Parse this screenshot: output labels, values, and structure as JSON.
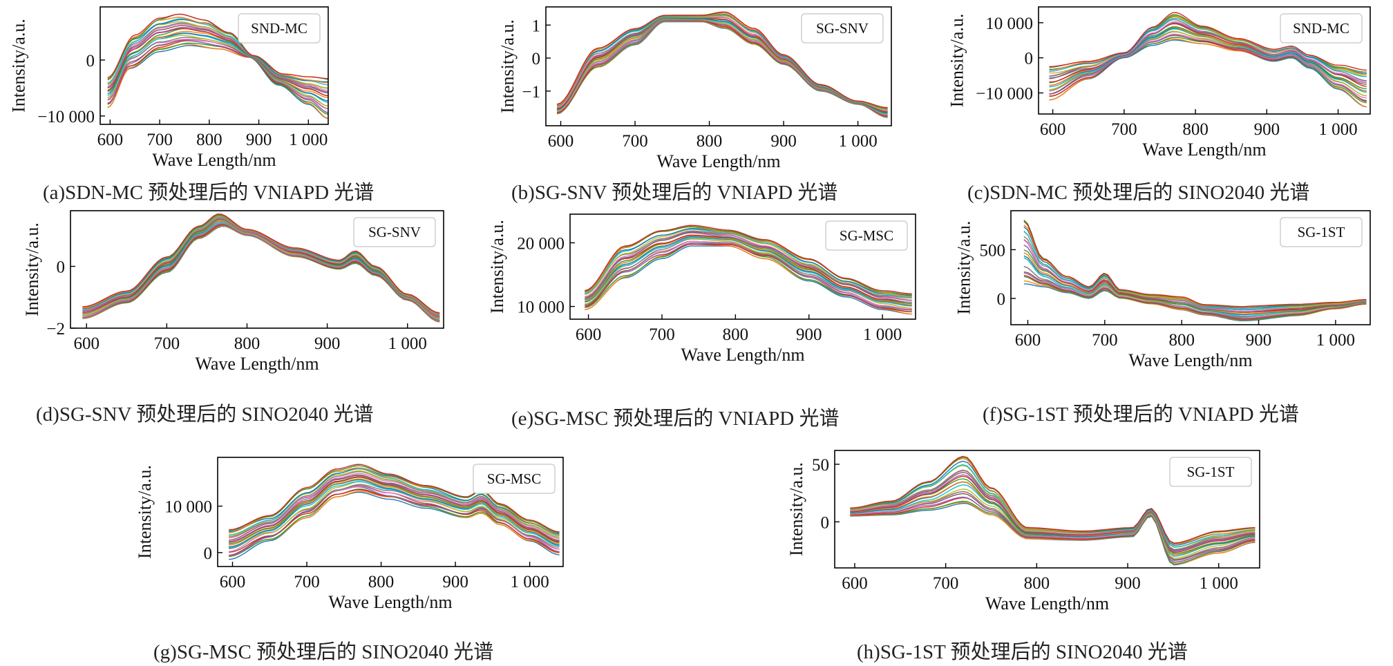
{
  "chart_data": [
    {
      "id": "a",
      "type": "line",
      "caption": "(a)SDN-MC 预处理后的 VNIAPD 光谱",
      "legend": "SND-MC",
      "xlabel": "Wave Length/nm",
      "ylabel": "Intensity/a.u.",
      "xlim": [
        580,
        1040
      ],
      "ylim": [
        -11500,
        9500
      ],
      "x_ticks": [
        {
          "v": 600,
          "label": "600"
        },
        {
          "v": 700,
          "label": "700"
        },
        {
          "v": 800,
          "label": "800"
        },
        {
          "v": 900,
          "label": "900"
        },
        {
          "v": 1000,
          "label": "1 000"
        }
      ],
      "y_ticks": [
        {
          "v": 0,
          "label": "0"
        },
        {
          "v": -10000,
          "label": "−10 000"
        }
      ],
      "legend_position": "top-right",
      "x_range": [
        595,
        1040
      ],
      "upper": [
        [
          595,
          -3000
        ],
        [
          650,
          4500
        ],
        [
          700,
          7500
        ],
        [
          740,
          8200
        ],
        [
          790,
          7200
        ],
        [
          840,
          5000
        ],
        [
          890,
          800
        ],
        [
          950,
          -2500
        ],
        [
          1000,
          -3000
        ],
        [
          1040,
          -3200
        ]
      ],
      "lower": [
        [
          595,
          -8500
        ],
        [
          640,
          -1500
        ],
        [
          700,
          1500
        ],
        [
          760,
          2500
        ],
        [
          820,
          2000
        ],
        [
          880,
          500
        ],
        [
          940,
          -4500
        ],
        [
          1000,
          -8000
        ],
        [
          1040,
          -10500
        ]
      ]
    },
    {
      "id": "b",
      "type": "line",
      "caption": "(b)SG-SNV 预处理后的 VNIAPD 光谱",
      "legend": "SG-SNV",
      "xlabel": "Wave Length/nm",
      "ylabel": "Intensity/a.u.",
      "xlim": [
        580,
        1045
      ],
      "ylim": [
        -2.05,
        1.55
      ],
      "x_ticks": [
        {
          "v": 600,
          "label": "600"
        },
        {
          "v": 700,
          "label": "700"
        },
        {
          "v": 800,
          "label": "800"
        },
        {
          "v": 900,
          "label": "900"
        },
        {
          "v": 1000,
          "label": "1 000"
        }
      ],
      "y_ticks": [
        {
          "v": 1,
          "label": "1"
        },
        {
          "v": 0,
          "label": "0"
        },
        {
          "v": -1,
          "label": "−1"
        }
      ],
      "legend_position": "top-right",
      "x_range": [
        595,
        1040
      ],
      "upper": [
        [
          595,
          -1.4
        ],
        [
          650,
          0.3
        ],
        [
          700,
          0.9
        ],
        [
          740,
          1.3
        ],
        [
          790,
          1.3
        ],
        [
          820,
          1.4
        ],
        [
          860,
          0.9
        ],
        [
          900,
          0.1
        ],
        [
          950,
          -0.8
        ],
        [
          1000,
          -1.3
        ],
        [
          1040,
          -1.5
        ]
      ],
      "lower": [
        [
          595,
          -1.7
        ],
        [
          650,
          -0.3
        ],
        [
          700,
          0.4
        ],
        [
          740,
          1.1
        ],
        [
          790,
          1.1
        ],
        [
          820,
          0.9
        ],
        [
          860,
          0.4
        ],
        [
          900,
          -0.2
        ],
        [
          950,
          -1.0
        ],
        [
          1000,
          -1.4
        ],
        [
          1040,
          -1.8
        ]
      ]
    },
    {
      "id": "c",
      "type": "line",
      "caption": "(c)SDN-MC 预处理后的 SINO2040 光谱",
      "legend": "SND-MC",
      "xlabel": "Wave Length/nm",
      "ylabel": "Intensity/a.u.",
      "xlim": [
        580,
        1045
      ],
      "ylim": [
        -16000,
        14500
      ],
      "x_ticks": [
        {
          "v": 600,
          "label": "600"
        },
        {
          "v": 700,
          "label": "700"
        },
        {
          "v": 800,
          "label": "800"
        },
        {
          "v": 900,
          "label": "900"
        },
        {
          "v": 1000,
          "label": "1 000"
        }
      ],
      "y_ticks": [
        {
          "v": 10000,
          "label": "10 000"
        },
        {
          "v": 0,
          "label": "0"
        },
        {
          "v": -10000,
          "label": "−10 000"
        }
      ],
      "legend_position": "top-right",
      "x_range": [
        595,
        1040
      ],
      "upper": [
        [
          595,
          -2500
        ],
        [
          650,
          -1000
        ],
        [
          700,
          1500
        ],
        [
          740,
          9000
        ],
        [
          770,
          13000
        ],
        [
          810,
          9000
        ],
        [
          860,
          5500
        ],
        [
          910,
          2500
        ],
        [
          935,
          3500
        ],
        [
          960,
          1000
        ],
        [
          1000,
          -2000
        ],
        [
          1040,
          -3500
        ]
      ],
      "lower": [
        [
          595,
          -12000
        ],
        [
          650,
          -6000
        ],
        [
          700,
          0
        ],
        [
          740,
          3500
        ],
        [
          770,
          5000
        ],
        [
          810,
          4000
        ],
        [
          860,
          2000
        ],
        [
          910,
          -1000
        ],
        [
          935,
          0
        ],
        [
          960,
          -3000
        ],
        [
          1000,
          -9000
        ],
        [
          1040,
          -14000
        ]
      ]
    },
    {
      "id": "d",
      "type": "line",
      "caption": "(d)SG-SNV 预处理后的 SINO2040 光谱",
      "legend": "SG-SNV",
      "xlabel": "Wave Length/nm",
      "ylabel": "Intensity/a.u.",
      "xlim": [
        580,
        1045
      ],
      "ylim": [
        -2.0,
        1.8
      ],
      "x_ticks": [
        {
          "v": 600,
          "label": "600"
        },
        {
          "v": 700,
          "label": "700"
        },
        {
          "v": 800,
          "label": "800"
        },
        {
          "v": 900,
          "label": "900"
        },
        {
          "v": 1000,
          "label": "1 000"
        }
      ],
      "y_ticks": [
        {
          "v": 0,
          "label": "0"
        },
        {
          "v": -2,
          "label": "−2"
        }
      ],
      "legend_position": "top-right",
      "x_range": [
        595,
        1040
      ],
      "upper": [
        [
          595,
          -1.3
        ],
        [
          650,
          -0.8
        ],
        [
          700,
          0.3
        ],
        [
          740,
          1.3
        ],
        [
          765,
          1.7
        ],
        [
          800,
          1.2
        ],
        [
          860,
          0.6
        ],
        [
          915,
          0.2
        ],
        [
          935,
          0.5
        ],
        [
          960,
          0.0
        ],
        [
          1000,
          -0.9
        ],
        [
          1040,
          -1.5
        ]
      ],
      "lower": [
        [
          595,
          -1.7
        ],
        [
          650,
          -1.2
        ],
        [
          700,
          -0.2
        ],
        [
          740,
          0.9
        ],
        [
          770,
          1.3
        ],
        [
          800,
          1.0
        ],
        [
          860,
          0.3
        ],
        [
          915,
          -0.1
        ],
        [
          935,
          0.1
        ],
        [
          960,
          -0.3
        ],
        [
          1000,
          -1.1
        ],
        [
          1040,
          -1.8
        ]
      ]
    },
    {
      "id": "e",
      "type": "line",
      "caption": "(e)SG-MSC 预处理后的 VNIAPD 光谱",
      "legend": "SG-MSC",
      "xlabel": "Wave Length/nm",
      "ylabel": "Intensity/a.u.",
      "xlim": [
        575,
        1045
      ],
      "ylim": [
        8000,
        24500
      ],
      "x_ticks": [
        {
          "v": 600,
          "label": "600"
        },
        {
          "v": 700,
          "label": "700"
        },
        {
          "v": 800,
          "label": "800"
        },
        {
          "v": 900,
          "label": "900"
        },
        {
          "v": 1000,
          "label": "1 000"
        }
      ],
      "y_ticks": [
        {
          "v": 20000,
          "label": "20 000"
        },
        {
          "v": 10000,
          "label": "10 000"
        }
      ],
      "legend_position": "top-right",
      "x_range": [
        595,
        1040
      ],
      "upper": [
        [
          595,
          12500
        ],
        [
          650,
          19500
        ],
        [
          700,
          22000
        ],
        [
          740,
          22800
        ],
        [
          790,
          22000
        ],
        [
          840,
          20500
        ],
        [
          900,
          17500
        ],
        [
          950,
          14500
        ],
        [
          1000,
          12500
        ],
        [
          1040,
          12000
        ]
      ],
      "lower": [
        [
          595,
          9500
        ],
        [
          650,
          14500
        ],
        [
          700,
          17500
        ],
        [
          740,
          19500
        ],
        [
          790,
          19500
        ],
        [
          840,
          17500
        ],
        [
          900,
          14000
        ],
        [
          950,
          11500
        ],
        [
          1000,
          9500
        ],
        [
          1040,
          8800
        ]
      ]
    },
    {
      "id": "f",
      "type": "line",
      "caption": "(f)SG-1ST 预处理后的 VNIAPD 光谱",
      "legend": "SG-1ST",
      "xlabel": "Wave Length/nm",
      "ylabel": "Intensity/a.u.",
      "xlim": [
        578,
        1045
      ],
      "ylim": [
        -270,
        900
      ],
      "x_ticks": [
        {
          "v": 600,
          "label": "600"
        },
        {
          "v": 700,
          "label": "700"
        },
        {
          "v": 800,
          "label": "800"
        },
        {
          "v": 900,
          "label": "900"
        },
        {
          "v": 1000,
          "label": "1 000"
        }
      ],
      "y_ticks": [
        {
          "v": 500,
          "label": "500"
        },
        {
          "v": 0,
          "label": "0"
        }
      ],
      "legend_position": "top-right",
      "x_range": [
        595,
        1040
      ],
      "upper": [
        [
          595,
          830
        ],
        [
          620,
          420
        ],
        [
          650,
          230
        ],
        [
          680,
          120
        ],
        [
          700,
          260
        ],
        [
          720,
          90
        ],
        [
          760,
          40
        ],
        [
          800,
          20
        ],
        [
          830,
          -60
        ],
        [
          880,
          -80
        ],
        [
          950,
          -60
        ],
        [
          1000,
          -40
        ],
        [
          1040,
          -10
        ]
      ],
      "lower": [
        [
          595,
          150
        ],
        [
          620,
          120
        ],
        [
          650,
          60
        ],
        [
          680,
          0
        ],
        [
          700,
          80
        ],
        [
          720,
          0
        ],
        [
          760,
          -60
        ],
        [
          800,
          -120
        ],
        [
          830,
          -170
        ],
        [
          880,
          -230
        ],
        [
          950,
          -180
        ],
        [
          1000,
          -110
        ],
        [
          1040,
          -60
        ]
      ]
    },
    {
      "id": "g",
      "type": "line",
      "caption": "(g)SG-MSC 预处理后的 SINO2040 光谱",
      "legend": "SG-MSC",
      "xlabel": "Wave Length/nm",
      "ylabel": "Intensity/a.u.",
      "xlim": [
        580,
        1045
      ],
      "ylim": [
        -3000,
        20500
      ],
      "x_ticks": [
        {
          "v": 600,
          "label": "600"
        },
        {
          "v": 700,
          "label": "700"
        },
        {
          "v": 800,
          "label": "800"
        },
        {
          "v": 900,
          "label": "900"
        },
        {
          "v": 1000,
          "label": "1 000"
        }
      ],
      "y_ticks": [
        {
          "v": 10000,
          "label": "10 000"
        },
        {
          "v": 0,
          "label": "0"
        }
      ],
      "legend_position": "top-right",
      "x_range": [
        595,
        1040
      ],
      "upper": [
        [
          595,
          5000
        ],
        [
          650,
          8000
        ],
        [
          700,
          14000
        ],
        [
          740,
          18000
        ],
        [
          770,
          19000
        ],
        [
          810,
          17000
        ],
        [
          860,
          14500
        ],
        [
          915,
          12000
        ],
        [
          935,
          13500
        ],
        [
          960,
          10500
        ],
        [
          1000,
          7000
        ],
        [
          1040,
          4500
        ]
      ],
      "lower": [
        [
          595,
          -1500
        ],
        [
          650,
          2500
        ],
        [
          700,
          7500
        ],
        [
          740,
          12000
        ],
        [
          770,
          13000
        ],
        [
          810,
          11500
        ],
        [
          860,
          9500
        ],
        [
          915,
          7500
        ],
        [
          935,
          8500
        ],
        [
          960,
          6000
        ],
        [
          1000,
          2500
        ],
        [
          1040,
          -500
        ]
      ]
    },
    {
      "id": "h",
      "type": "line",
      "caption": "(h)SG-1ST 预处理后的 SINO2040 光谱",
      "legend": "SG-1ST",
      "xlabel": "Wave Length/nm",
      "ylabel": "Intensity/a.u.",
      "xlim": [
        578,
        1045
      ],
      "ylim": [
        -40,
        62
      ],
      "x_ticks": [
        {
          "v": 600,
          "label": "600"
        },
        {
          "v": 700,
          "label": "700"
        },
        {
          "v": 800,
          "label": "800"
        },
        {
          "v": 900,
          "label": "900"
        },
        {
          "v": 1000,
          "label": "1 000"
        }
      ],
      "y_ticks": [
        {
          "v": 50,
          "label": "50"
        },
        {
          "v": 0,
          "label": "0"
        }
      ],
      "legend_position": "top-right",
      "x_range": [
        595,
        1040
      ],
      "upper": [
        [
          595,
          12
        ],
        [
          640,
          18
        ],
        [
          680,
          35
        ],
        [
          720,
          58
        ],
        [
          750,
          30
        ],
        [
          790,
          -5
        ],
        [
          850,
          -8
        ],
        [
          905,
          -5
        ],
        [
          925,
          12
        ],
        [
          950,
          -18
        ],
        [
          1000,
          -8
        ],
        [
          1040,
          -5
        ]
      ],
      "lower": [
        [
          595,
          5
        ],
        [
          640,
          6
        ],
        [
          680,
          10
        ],
        [
          720,
          15
        ],
        [
          750,
          5
        ],
        [
          790,
          -15
        ],
        [
          850,
          -16
        ],
        [
          905,
          -13
        ],
        [
          925,
          5
        ],
        [
          950,
          -38
        ],
        [
          1000,
          -28
        ],
        [
          1040,
          -18
        ]
      ]
    }
  ],
  "series_colors": [
    "#1f77b4",
    "#ff7f0e",
    "#2ca02c",
    "#d62728",
    "#9467bd",
    "#8c564b",
    "#e377c2",
    "#7f7f7f",
    "#bcbd22",
    "#17becf"
  ]
}
